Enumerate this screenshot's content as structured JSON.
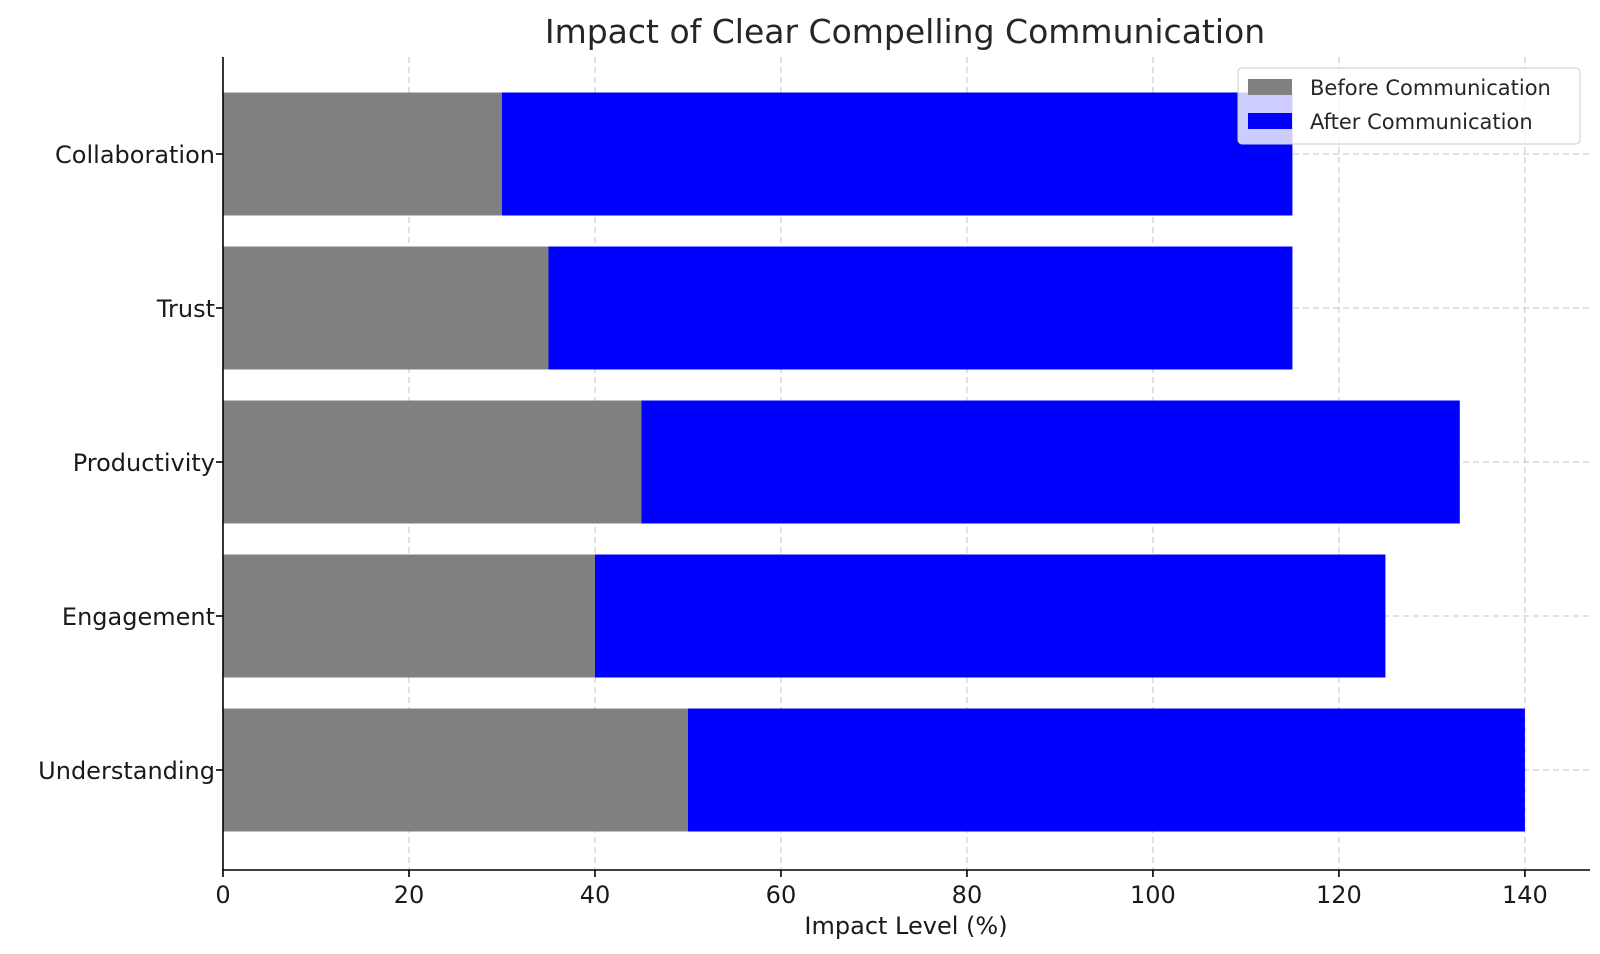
{
  "chart_data": {
    "type": "bar",
    "orientation": "horizontal",
    "stacked": true,
    "title": "Impact of Clear Compelling Communication",
    "xlabel": "Impact Level (%)",
    "ylabel": "",
    "categories": [
      "Understanding",
      "Engagement",
      "Productivity",
      "Trust",
      "Collaboration"
    ],
    "series": [
      {
        "name": "Before Communication",
        "color": "#808080",
        "values": [
          50,
          40,
          45,
          35,
          30
        ]
      },
      {
        "name": "After Communication",
        "color": "#0000ff",
        "values": [
          90,
          85,
          88,
          80,
          85
        ]
      }
    ],
    "xlim": [
      0,
      147
    ],
    "xticks": [
      0,
      20,
      40,
      60,
      80,
      100,
      120,
      140
    ],
    "grid": true,
    "legend_position": "top-right"
  }
}
